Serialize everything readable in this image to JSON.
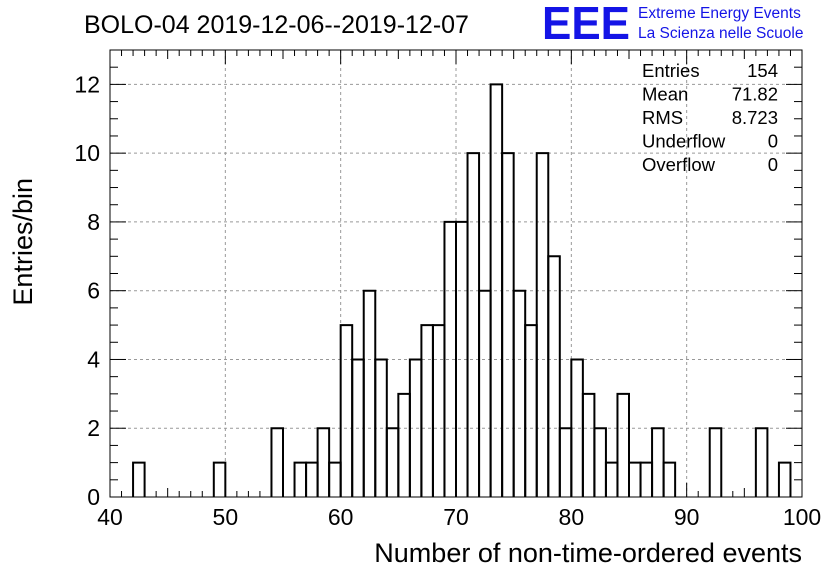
{
  "title": "BOLO-04 2019-12-06--2019-12-07",
  "logo": {
    "mark": "EEE",
    "line1": "Extreme Energy Events",
    "line2": "La Scienza nelle Scuole",
    "color": "#1414e6"
  },
  "stats": [
    {
      "label": "Entries",
      "value": "154"
    },
    {
      "label": "Mean",
      "value": "71.82"
    },
    {
      "label": "RMS",
      "value": "8.723"
    },
    {
      "label": "Underflow",
      "value": "0"
    },
    {
      "label": "Overflow",
      "value": "0"
    }
  ],
  "chart_data": {
    "type": "histogram",
    "xlabel": "Number of non-time-ordered events",
    "ylabel": "Entries/bin",
    "xlim": [
      40,
      100
    ],
    "ylim": [
      0,
      13
    ],
    "bin_width": 1,
    "x_ticks": [
      40,
      50,
      60,
      70,
      80,
      90,
      100
    ],
    "y_ticks": [
      0,
      2,
      4,
      6,
      8,
      10,
      12
    ],
    "grid": true,
    "bins": [
      {
        "x": 42,
        "value": 1
      },
      {
        "x": 49,
        "value": 1
      },
      {
        "x": 54,
        "value": 2
      },
      {
        "x": 56,
        "value": 1
      },
      {
        "x": 57,
        "value": 1
      },
      {
        "x": 58,
        "value": 2
      },
      {
        "x": 59,
        "value": 1
      },
      {
        "x": 60,
        "value": 5
      },
      {
        "x": 61,
        "value": 4
      },
      {
        "x": 62,
        "value": 6
      },
      {
        "x": 63,
        "value": 4
      },
      {
        "x": 64,
        "value": 2
      },
      {
        "x": 65,
        "value": 3
      },
      {
        "x": 66,
        "value": 4
      },
      {
        "x": 67,
        "value": 5
      },
      {
        "x": 68,
        "value": 5
      },
      {
        "x": 69,
        "value": 8
      },
      {
        "x": 70,
        "value": 8
      },
      {
        "x": 71,
        "value": 10
      },
      {
        "x": 72,
        "value": 6
      },
      {
        "x": 73,
        "value": 12
      },
      {
        "x": 74,
        "value": 10
      },
      {
        "x": 75,
        "value": 6
      },
      {
        "x": 76,
        "value": 5
      },
      {
        "x": 77,
        "value": 10
      },
      {
        "x": 78,
        "value": 7
      },
      {
        "x": 79,
        "value": 2
      },
      {
        "x": 80,
        "value": 4
      },
      {
        "x": 81,
        "value": 3
      },
      {
        "x": 82,
        "value": 2
      },
      {
        "x": 83,
        "value": 1
      },
      {
        "x": 84,
        "value": 3
      },
      {
        "x": 85,
        "value": 1
      },
      {
        "x": 86,
        "value": 1
      },
      {
        "x": 87,
        "value": 2
      },
      {
        "x": 88,
        "value": 1
      },
      {
        "x": 92,
        "value": 2
      },
      {
        "x": 96,
        "value": 2
      },
      {
        "x": 98,
        "value": 1
      }
    ],
    "line_color": "#000000",
    "grid_color": "#999999"
  }
}
